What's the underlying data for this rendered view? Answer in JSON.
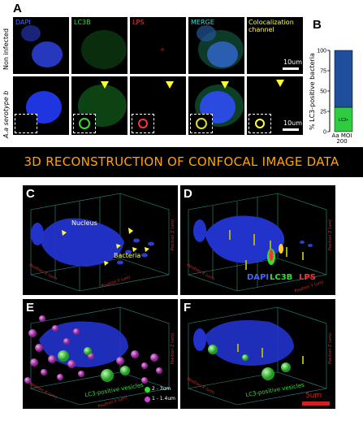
{
  "panel_a": {
    "label": "A",
    "columns": [
      "DAPI",
      "LC3B",
      "LPS",
      "MERGE",
      "Colocalization channel"
    ],
    "column_colors": [
      "#4466ff",
      "#33dd33",
      "#ff3333",
      "#33dddd",
      "#ffff33"
    ],
    "rows": [
      "Non infected",
      "A.a serotype b"
    ],
    "scale_label": "10um"
  },
  "panel_b": {
    "label": "B",
    "ylabel": "% LC3-positive bacteria",
    "xlabel": "Aa MOI 200",
    "segment_label": "LC3+",
    "chart_data": {
      "type": "bar",
      "categories": [
        "Aa MOI 200"
      ],
      "series": [
        {
          "name": "LC3+",
          "values": [
            30
          ],
          "color": "#2ecc40"
        },
        {
          "values": [
            70
          ],
          "color": "#1f4e9c"
        }
      ],
      "ylim": [
        0,
        100
      ],
      "yticks": [
        "0",
        "25",
        "50",
        "75",
        "100"
      ]
    }
  },
  "banner": {
    "title": "3D RECONSTRUCTION OF CONFOCAL IMAGE DATA"
  },
  "panel_c": {
    "label": "C",
    "nucleus_label": "Nucleus",
    "bacteria_label": "Bacteria",
    "axis_x": "Position X (um)",
    "axis_y": "Position Y (um)",
    "axis_z": "Position Z (um)"
  },
  "panel_d": {
    "label": "D",
    "legend": [
      "DAPI",
      "LC3B",
      "LPS"
    ],
    "legend_colors": [
      "#4466ff",
      "#33dd33",
      "#ff3333"
    ],
    "axis_x": "Position X (um)",
    "axis_y": "Position Y (um)",
    "axis_z": "Position Z (um)"
  },
  "panel_e": {
    "label": "E",
    "vesicles_label": "LC3-positive vesicles",
    "legend": [
      "2 - 3um",
      "1 - 1.4um"
    ],
    "legend_colors": [
      "#33dd33",
      "#cc44cc"
    ],
    "axis_x": "Position X (um)",
    "axis_y": "Position Y (um)",
    "axis_z": "Position Z (um)"
  },
  "panel_f": {
    "label": "F",
    "vesicles_label": "LC3-positive vesicles",
    "scale_label": "5um",
    "axis_x": "Position X (um)",
    "axis_y": "Position Y (um)",
    "axis_z": "Position Z (um)"
  }
}
